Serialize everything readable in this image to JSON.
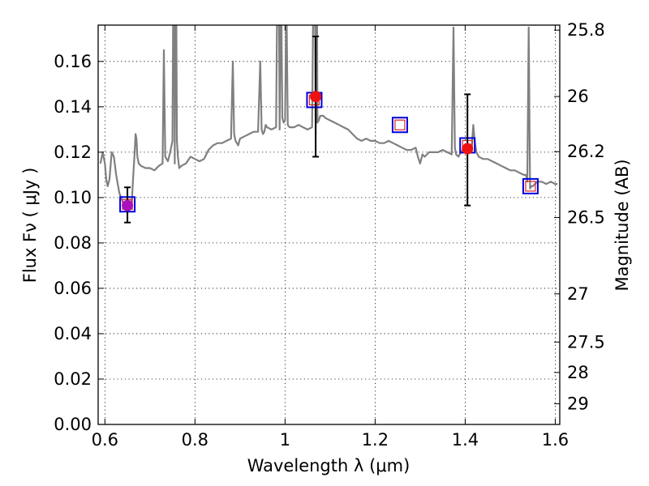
{
  "chart_data": {
    "type": "line",
    "xlabel": "Wavelength  λ (μm)",
    "ylabel_left": "Flux  Fν  ( μJy )",
    "ylabel_right": "Magnitude (AB)",
    "xlim": [
      0.585,
      1.61
    ],
    "ylim": [
      0.0,
      0.176
    ],
    "x_ticks": [
      "0.6",
      "0.8",
      "1",
      "1.2",
      "1.4",
      "1.6"
    ],
    "y_ticks": [
      "0.00",
      "0.02",
      "0.04",
      "0.06",
      "0.08",
      "0.10",
      "0.12",
      "0.14",
      "0.16"
    ],
    "right_ticks": [
      {
        "label": "25.8",
        "mag": 25.8
      },
      {
        "label": "26",
        "mag": 26.0
      },
      {
        "label": "26.2",
        "mag": 26.2
      },
      {
        "label": "26.5",
        "mag": 26.5
      },
      {
        "label": "27",
        "mag": 27.0
      },
      {
        "label": "27.5",
        "mag": 27.5
      },
      {
        "label": "28",
        "mag": 28.0
      },
      {
        "label": "29",
        "mag": 29.0
      }
    ],
    "grid": true,
    "colors": {
      "spectrum": "#808080",
      "observed_purple": "#aa11bb",
      "observed_red": "#ee1111",
      "model_square": "#0000dd",
      "model_square_inner": "#dd2222",
      "errorbar": "#000000"
    },
    "series": [
      {
        "kind": "spectrum",
        "x": [
          0.59,
          0.595,
          0.6,
          0.603,
          0.606,
          0.61,
          0.615,
          0.62,
          0.625,
          0.632,
          0.64,
          0.65,
          0.66,
          0.663,
          0.666,
          0.668,
          0.67,
          0.672,
          0.675,
          0.68,
          0.69,
          0.7,
          0.71,
          0.72,
          0.728,
          0.731,
          0.734,
          0.737,
          0.74,
          0.745,
          0.75,
          0.753,
          0.755,
          0.757,
          0.76,
          0.762,
          0.765,
          0.77,
          0.78,
          0.79,
          0.8,
          0.81,
          0.82,
          0.83,
          0.84,
          0.85,
          0.86,
          0.87,
          0.88,
          0.884,
          0.887,
          0.89,
          0.893,
          0.896,
          0.9,
          0.91,
          0.92,
          0.93,
          0.94,
          0.945,
          0.948,
          0.951,
          0.954,
          0.957,
          0.96,
          0.97,
          0.98,
          0.985,
          0.988,
          0.991,
          0.994,
          0.997,
          1.0,
          1.003,
          1.006,
          1.01,
          1.02,
          1.03,
          1.04,
          1.05,
          1.06,
          1.065,
          1.068,
          1.07,
          1.072,
          1.075,
          1.078,
          1.082,
          1.085,
          1.09,
          1.1,
          1.11,
          1.12,
          1.13,
          1.14,
          1.15,
          1.16,
          1.17,
          1.18,
          1.19,
          1.2,
          1.21,
          1.22,
          1.23,
          1.24,
          1.25,
          1.26,
          1.27,
          1.28,
          1.29,
          1.295,
          1.3,
          1.305,
          1.31,
          1.32,
          1.33,
          1.34,
          1.35,
          1.36,
          1.37,
          1.374,
          1.377,
          1.38,
          1.385,
          1.39,
          1.4,
          1.41,
          1.415,
          1.418,
          1.421,
          1.425,
          1.43,
          1.44,
          1.45,
          1.46,
          1.47,
          1.48,
          1.49,
          1.5,
          1.51,
          1.52,
          1.53,
          1.535,
          1.538,
          1.541,
          1.544,
          1.547,
          1.55,
          1.56,
          1.57,
          1.58,
          1.59,
          1.6,
          1.605
        ],
        "y": [
          0.115,
          0.12,
          0.115,
          0.108,
          0.105,
          0.108,
          0.12,
          0.118,
          0.11,
          0.102,
          0.098,
          0.096,
          0.099,
          0.11,
          0.12,
          0.128,
          0.126,
          0.118,
          0.115,
          0.114,
          0.113,
          0.113,
          0.112,
          0.114,
          0.115,
          0.165,
          0.118,
          0.117,
          0.116,
          0.12,
          0.125,
          0.24,
          0.115,
          0.24,
          0.125,
          0.118,
          0.113,
          0.114,
          0.115,
          0.118,
          0.117,
          0.116,
          0.117,
          0.121,
          0.123,
          0.124,
          0.124,
          0.125,
          0.126,
          0.16,
          0.128,
          0.125,
          0.124,
          0.123,
          0.126,
          0.127,
          0.128,
          0.129,
          0.129,
          0.16,
          0.13,
          0.128,
          0.129,
          0.132,
          0.131,
          0.13,
          0.131,
          0.24,
          0.13,
          0.2,
          0.135,
          0.133,
          0.134,
          0.19,
          0.132,
          0.131,
          0.131,
          0.132,
          0.131,
          0.13,
          0.131,
          0.24,
          0.128,
          0.24,
          0.133,
          0.134,
          0.136,
          0.136,
          0.136,
          0.135,
          0.134,
          0.133,
          0.132,
          0.131,
          0.13,
          0.128,
          0.126,
          0.125,
          0.126,
          0.125,
          0.125,
          0.124,
          0.124,
          0.125,
          0.124,
          0.123,
          0.122,
          0.121,
          0.121,
          0.122,
          0.118,
          0.115,
          0.119,
          0.118,
          0.12,
          0.12,
          0.12,
          0.121,
          0.12,
          0.119,
          0.175,
          0.122,
          0.119,
          0.118,
          0.12,
          0.122,
          0.121,
          0.124,
          0.132,
          0.125,
          0.12,
          0.118,
          0.117,
          0.117,
          0.116,
          0.115,
          0.114,
          0.113,
          0.112,
          0.112,
          0.111,
          0.11,
          0.11,
          0.107,
          0.175,
          0.104,
          0.105,
          0.105,
          0.107,
          0.107,
          0.106,
          0.107,
          0.106,
          0.106
        ],
        "marks": "none"
      },
      {
        "kind": "model",
        "x": [
          0.65,
          1.065,
          1.255,
          1.405,
          1.545
        ],
        "y": [
          0.097,
          0.143,
          0.132,
          0.123,
          0.105
        ],
        "marks": "open-square"
      },
      {
        "kind": "observed",
        "x": [
          0.65,
          1.068,
          1.405
        ],
        "y": [
          0.0965,
          0.1445,
          0.1215
        ],
        "yerr_low": [
          0.0075,
          0.0265,
          0.025
        ],
        "yerr_high": [
          0.008,
          0.0265,
          0.024
        ],
        "point_colors": [
          "#aa11bb",
          "#ee1111",
          "#ee1111"
        ],
        "marks": "filled-circle"
      }
    ]
  }
}
